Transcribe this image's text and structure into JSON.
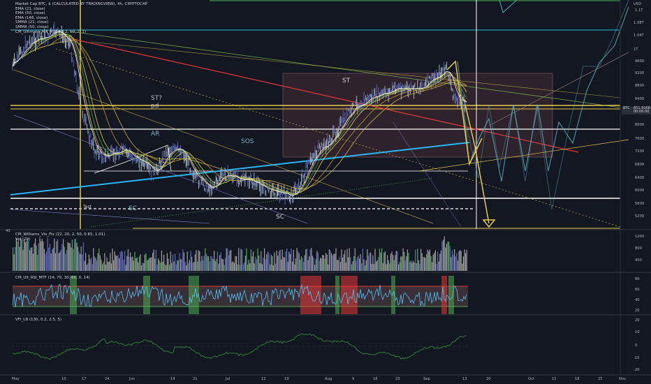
{
  "legend": {
    "title": "Market Cap BTC, $ (CALCULATED BY TRADINGVIEW), 4h, CRYPTOCAP",
    "lines": [
      "EMA (21, close)",
      "EMA (50, close)",
      "EMA (148, close)",
      "SMMA (21, close)",
      "SMMA (50, close)",
      "CM_Ultimate_MA_MTF (1, 2, 50, 7, 1)"
    ]
  },
  "annotations": {
    "st_q": "ST?",
    "pd": "pd",
    "ar": "AR",
    "sos": "SOS",
    "st": "ST",
    "sc1": "SC",
    "sc2": "SC",
    "test": "Test"
  },
  "price_axis": {
    "currency": "USD",
    "ticks": [
      "1.1T",
      "1.08T",
      "1.04T",
      "1T",
      "9600",
      "9200",
      "8800",
      "8400",
      "8000",
      "7600",
      "7200",
      "6800",
      "6400",
      "6000",
      "5600",
      "5200"
    ],
    "current_label": "BTC",
    "current_value": "851.9168",
    "current_sub": "00:00:00"
  },
  "volume_pane": {
    "label": "CM_Williams_Vix_Fix (22, 20, 2, 50, 0.85, 1.01)",
    "label2": "Vol (20)",
    "left_tick": "40",
    "ticks": [
      "1200",
      "800",
      "400"
    ]
  },
  "rsi_pane": {
    "label": "CM_Ult_RSI_MTF (14, 70, 30, 60, 0, 14)",
    "ticks": [
      "80",
      "60",
      "40",
      "20"
    ]
  },
  "vfi_pane": {
    "label": "VFI_LB (130, 0.2, 2.5, 5)",
    "ticks": [
      "20",
      "10",
      "0",
      "-10",
      "-20"
    ]
  },
  "time_axis": [
    "May",
    "10",
    "17",
    "24",
    "Jun",
    "14",
    "21",
    "Jul",
    "12",
    "19",
    "Aug",
    "9",
    "16",
    "23",
    "Sep",
    "13",
    "20",
    "Oct",
    "11",
    "18",
    "25",
    "Nov"
  ],
  "colors": {
    "background": "#131722",
    "candle": "#8e9aaf",
    "yellow": "#e8c94a",
    "white": "#ffffff",
    "cyan": "#26c6da",
    "blue": "#1e88e5",
    "red": "#e53935",
    "green": "#4caf50",
    "teal": "#5aa9b5",
    "annotation": "#7fb3c9"
  }
}
